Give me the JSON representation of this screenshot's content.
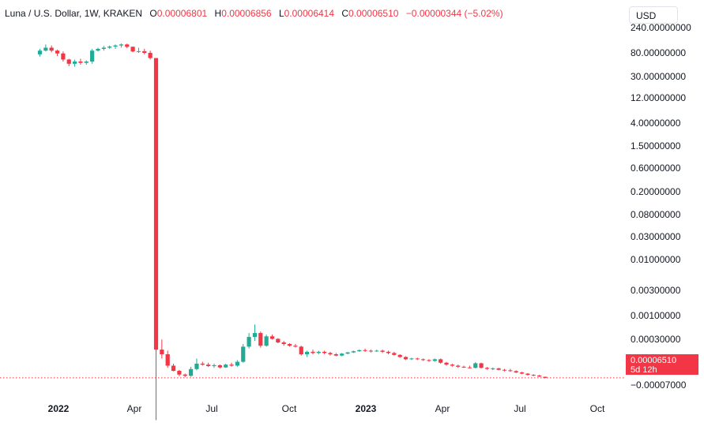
{
  "legend": {
    "symbol": "Luna / U.S. Dollar, 1W, KRAKEN",
    "o_label": "O",
    "o_value": "0.00006801",
    "h_label": "H",
    "h_value": "0.00006856",
    "l_label": "L",
    "l_value": "0.00006414",
    "c_label": "C",
    "c_value": "0.00006510",
    "change": "−0.00000344 (−5.02%)"
  },
  "currency_button": "USD",
  "price_tag": {
    "price": "0.00006510",
    "countdown": "5d 12h"
  },
  "colors": {
    "up": "#22ab94",
    "down": "#f23645",
    "axis_text": "#131722"
  },
  "chart_data": {
    "type": "candlestick",
    "title": "Luna / U.S. Dollar, 1W, KRAKEN",
    "yscale": "log",
    "y_ticks": [
      "240.00000000",
      "80.00000000",
      "30.00000000",
      "12.00000000",
      "4.00000000",
      "1.50000000",
      "0.60000000",
      "0.20000000",
      "0.08000000",
      "0.03000000",
      "0.01000000",
      "0.00300000",
      "0.00100000",
      "0.00030000",
      "0.00006510",
      "−0.00007000"
    ],
    "x_ticks": [
      "2022",
      "Apr",
      "Jul",
      "Oct",
      "2023",
      "Apr",
      "Jul",
      "Oct"
    ],
    "x_ticks_bold": [
      "2022",
      "2023"
    ],
    "last_price": 6.51e-05,
    "candles": [
      {
        "date": "2021-12-20",
        "o": 75,
        "h": 95,
        "l": 68,
        "c": 88
      },
      {
        "date": "2021-12-27",
        "o": 88,
        "h": 115,
        "l": 85,
        "c": 100
      },
      {
        "date": "2022-01-03",
        "o": 100,
        "h": 110,
        "l": 82,
        "c": 88
      },
      {
        "date": "2022-01-10",
        "o": 88,
        "h": 92,
        "l": 70,
        "c": 78
      },
      {
        "date": "2022-01-17",
        "o": 78,
        "h": 85,
        "l": 55,
        "c": 60
      },
      {
        "date": "2022-01-24",
        "o": 60,
        "h": 62,
        "l": 45,
        "c": 50
      },
      {
        "date": "2022-01-31",
        "o": 50,
        "h": 60,
        "l": 44,
        "c": 55
      },
      {
        "date": "2022-02-07",
        "o": 55,
        "h": 62,
        "l": 48,
        "c": 52
      },
      {
        "date": "2022-02-14",
        "o": 52,
        "h": 58,
        "l": 48,
        "c": 55
      },
      {
        "date": "2022-02-21",
        "o": 55,
        "h": 95,
        "l": 50,
        "c": 88
      },
      {
        "date": "2022-02-28",
        "o": 88,
        "h": 100,
        "l": 85,
        "c": 95
      },
      {
        "date": "2022-03-07",
        "o": 95,
        "h": 108,
        "l": 88,
        "c": 100
      },
      {
        "date": "2022-03-14",
        "o": 100,
        "h": 110,
        "l": 95,
        "c": 105
      },
      {
        "date": "2022-03-21",
        "o": 105,
        "h": 115,
        "l": 95,
        "c": 110
      },
      {
        "date": "2022-03-28",
        "o": 110,
        "h": 120,
        "l": 100,
        "c": 115
      },
      {
        "date": "2022-04-04",
        "o": 115,
        "h": 119,
        "l": 98,
        "c": 104
      },
      {
        "date": "2022-04-11",
        "o": 104,
        "h": 105,
        "l": 82,
        "c": 85
      },
      {
        "date": "2022-04-18",
        "o": 85,
        "h": 100,
        "l": 80,
        "c": 86
      },
      {
        "date": "2022-04-25",
        "o": 86,
        "h": 95,
        "l": 75,
        "c": 80
      },
      {
        "date": "2022-05-02",
        "o": 80,
        "h": 88,
        "l": 60,
        "c": 64
      },
      {
        "date": "2022-05-09",
        "o": 64,
        "h": 64,
        "l": 1.05e-05,
        "c": 0.00022
      },
      {
        "date": "2022-05-16",
        "o": 0.00022,
        "h": 0.00034,
        "l": 0.00015,
        "c": 0.00018
      },
      {
        "date": "2022-05-23",
        "o": 0.00018,
        "h": 0.00021,
        "l": 0.0001,
        "c": 0.00011
      },
      {
        "date": "2022-05-30",
        "o": 0.00011,
        "h": 0.00012,
        "l": 8.6e-05,
        "c": 8.8e-05
      },
      {
        "date": "2022-06-06",
        "o": 8.8e-05,
        "h": 9.2e-05,
        "l": 7e-05,
        "c": 7.5e-05
      },
      {
        "date": "2022-06-13",
        "o": 7.5e-05,
        "h": 7.8e-05,
        "l": 6.7e-05,
        "c": 7.1e-05
      },
      {
        "date": "2022-06-20",
        "o": 7.1e-05,
        "h": 0.000105,
        "l": 6.8e-05,
        "c": 9.5e-05
      },
      {
        "date": "2022-06-27",
        "o": 9.5e-05,
        "h": 0.00015,
        "l": 9e-05,
        "c": 0.00012
      },
      {
        "date": "2022-07-04",
        "o": 0.00012,
        "h": 0.00013,
        "l": 0.00011,
        "c": 0.000115
      },
      {
        "date": "2022-07-11",
        "o": 0.000115,
        "h": 0.000125,
        "l": 0.000104,
        "c": 0.000108
      },
      {
        "date": "2022-07-18",
        "o": 0.000108,
        "h": 0.00012,
        "l": 0.0001,
        "c": 0.000112
      },
      {
        "date": "2022-07-25",
        "o": 0.000112,
        "h": 0.000116,
        "l": 9.8e-05,
        "c": 0.000102
      },
      {
        "date": "2022-08-01",
        "o": 0.000102,
        "h": 0.00012,
        "l": 0.0001,
        "c": 0.000115
      },
      {
        "date": "2022-08-08",
        "o": 0.000115,
        "h": 0.000125,
        "l": 0.000105,
        "c": 0.00011
      },
      {
        "date": "2022-08-15",
        "o": 0.00011,
        "h": 0.00014,
        "l": 0.000105,
        "c": 0.00013
      },
      {
        "date": "2022-08-22",
        "o": 0.00013,
        "h": 0.00028,
        "l": 0.000125,
        "c": 0.00025
      },
      {
        "date": "2022-08-29",
        "o": 0.00025,
        "h": 0.00045,
        "l": 0.00023,
        "c": 0.00038
      },
      {
        "date": "2022-09-05",
        "o": 0.00038,
        "h": 0.00065,
        "l": 0.00032,
        "c": 0.00045
      },
      {
        "date": "2022-09-12",
        "o": 0.00045,
        "h": 0.00048,
        "l": 0.00024,
        "c": 0.00026
      },
      {
        "date": "2022-09-19",
        "o": 0.00026,
        "h": 0.00042,
        "l": 0.00025,
        "c": 0.00039
      },
      {
        "date": "2022-09-26",
        "o": 0.00039,
        "h": 0.00042,
        "l": 0.00034,
        "c": 0.00035
      },
      {
        "date": "2022-10-03",
        "o": 0.00035,
        "h": 0.00036,
        "l": 0.00029,
        "c": 0.0003
      },
      {
        "date": "2022-10-10",
        "o": 0.0003,
        "h": 0.00032,
        "l": 0.00026,
        "c": 0.00028
      },
      {
        "date": "2022-10-17",
        "o": 0.00028,
        "h": 0.00029,
        "l": 0.00025,
        "c": 0.00026
      },
      {
        "date": "2022-10-24",
        "o": 0.00026,
        "h": 0.00028,
        "l": 0.00024,
        "c": 0.00025
      },
      {
        "date": "2022-10-31",
        "o": 0.00025,
        "h": 0.00026,
        "l": 0.00017,
        "c": 0.00018
      },
      {
        "date": "2022-11-07",
        "o": 0.00018,
        "h": 0.00021,
        "l": 0.00016,
        "c": 0.0002
      },
      {
        "date": "2022-11-14",
        "o": 0.0002,
        "h": 0.00022,
        "l": 0.00018,
        "c": 0.00019
      },
      {
        "date": "2022-11-21",
        "o": 0.00019,
        "h": 0.00021,
        "l": 0.00018,
        "c": 0.0002
      },
      {
        "date": "2022-11-28",
        "o": 0.0002,
        "h": 0.00021,
        "l": 0.00018,
        "c": 0.00019
      },
      {
        "date": "2022-12-05",
        "o": 0.00019,
        "h": 0.0002,
        "l": 0.00017,
        "c": 0.00018
      },
      {
        "date": "2022-12-12",
        "o": 0.00018,
        "h": 0.00019,
        "l": 0.000165,
        "c": 0.00017
      },
      {
        "date": "2022-12-19",
        "o": 0.00017,
        "h": 0.00019,
        "l": 0.000165,
        "c": 0.000185
      },
      {
        "date": "2022-12-26",
        "o": 0.000185,
        "h": 0.0002,
        "l": 0.00018,
        "c": 0.000195
      },
      {
        "date": "2023-01-02",
        "o": 0.000195,
        "h": 0.00021,
        "l": 0.00019,
        "c": 0.000205
      },
      {
        "date": "2023-01-09",
        "o": 0.000205,
        "h": 0.00022,
        "l": 0.0002,
        "c": 0.000215
      },
      {
        "date": "2023-01-16",
        "o": 0.000215,
        "h": 0.00023,
        "l": 0.0002,
        "c": 0.00021
      },
      {
        "date": "2023-01-23",
        "o": 0.00021,
        "h": 0.00022,
        "l": 0.000195,
        "c": 0.000205
      },
      {
        "date": "2023-01-30",
        "o": 0.000205,
        "h": 0.00022,
        "l": 0.0002,
        "c": 0.00021
      },
      {
        "date": "2023-02-06",
        "o": 0.00021,
        "h": 0.00022,
        "l": 0.00019,
        "c": 0.0002
      },
      {
        "date": "2023-02-13",
        "o": 0.0002,
        "h": 0.00021,
        "l": 0.00018,
        "c": 0.00019
      },
      {
        "date": "2023-02-20",
        "o": 0.00019,
        "h": 0.0002,
        "l": 0.00017,
        "c": 0.000175
      },
      {
        "date": "2023-02-27",
        "o": 0.000175,
        "h": 0.00018,
        "l": 0.000155,
        "c": 0.00016
      },
      {
        "date": "2023-03-06",
        "o": 0.00016,
        "h": 0.000165,
        "l": 0.00014,
        "c": 0.000145
      },
      {
        "date": "2023-03-13",
        "o": 0.000145,
        "h": 0.000155,
        "l": 0.00014,
        "c": 0.00015
      },
      {
        "date": "2023-03-20",
        "o": 0.00015,
        "h": 0.000155,
        "l": 0.00014,
        "c": 0.000145
      },
      {
        "date": "2023-03-27",
        "o": 0.000145,
        "h": 0.00015,
        "l": 0.000135,
        "c": 0.00014
      },
      {
        "date": "2023-04-03",
        "o": 0.00014,
        "h": 0.000145,
        "l": 0.00013,
        "c": 0.000135
      },
      {
        "date": "2023-04-10",
        "o": 0.000135,
        "h": 0.00015,
        "l": 0.00013,
        "c": 0.000145
      },
      {
        "date": "2023-04-17",
        "o": 0.000145,
        "h": 0.00015,
        "l": 0.00012,
        "c": 0.000125
      },
      {
        "date": "2023-04-24",
        "o": 0.000125,
        "h": 0.00013,
        "l": 0.00011,
        "c": 0.000115
      },
      {
        "date": "2023-05-01",
        "o": 0.000115,
        "h": 0.00012,
        "l": 0.000105,
        "c": 0.00011
      },
      {
        "date": "2023-05-08",
        "o": 0.00011,
        "h": 0.000115,
        "l": 0.0001,
        "c": 0.000105
      },
      {
        "date": "2023-05-15",
        "o": 0.000105,
        "h": 0.00011,
        "l": 0.0001,
        "c": 0.000102
      },
      {
        "date": "2023-05-22",
        "o": 0.000102,
        "h": 0.00011,
        "l": 9.8e-05,
        "c": 0.0001
      },
      {
        "date": "2023-05-29",
        "o": 0.0001,
        "h": 0.000128,
        "l": 9.8e-05,
        "c": 0.000122
      },
      {
        "date": "2023-06-05",
        "o": 0.000122,
        "h": 0.000125,
        "l": 9.8e-05,
        "c": 0.0001
      },
      {
        "date": "2023-06-12",
        "o": 0.0001,
        "h": 0.000104,
        "l": 9.2e-05,
        "c": 9.6e-05
      },
      {
        "date": "2023-06-19",
        "o": 9.6e-05,
        "h": 0.000102,
        "l": 9e-05,
        "c": 9.8e-05
      },
      {
        "date": "2023-06-26",
        "o": 9.8e-05,
        "h": 0.0001,
        "l": 9e-05,
        "c": 9.2e-05
      },
      {
        "date": "2023-07-03",
        "o": 9.2e-05,
        "h": 9.6e-05,
        "l": 8.6e-05,
        "c": 9e-05
      },
      {
        "date": "2023-07-10",
        "o": 9e-05,
        "h": 9.6e-05,
        "l": 8.5e-05,
        "c": 8.7e-05
      },
      {
        "date": "2023-07-17",
        "o": 8.7e-05,
        "h": 9e-05,
        "l": 8e-05,
        "c": 8.2e-05
      },
      {
        "date": "2023-07-24",
        "o": 8.2e-05,
        "h": 8.5e-05,
        "l": 7.6e-05,
        "c": 7.8e-05
      },
      {
        "date": "2023-07-31",
        "o": 7.8e-05,
        "h": 8e-05,
        "l": 7.2e-05,
        "c": 7.4e-05
      },
      {
        "date": "2023-08-07",
        "o": 7.4e-05,
        "h": 7.6e-05,
        "l": 7e-05,
        "c": 7.2e-05
      },
      {
        "date": "2023-08-14",
        "o": 7.2e-05,
        "h": 7.4e-05,
        "l": 6.8e-05,
        "c": 6.9e-05
      },
      {
        "date": "2023-08-21",
        "o": 6.801e-05,
        "h": 6.856e-05,
        "l": 6.414e-05,
        "c": 6.51e-05
      }
    ]
  }
}
